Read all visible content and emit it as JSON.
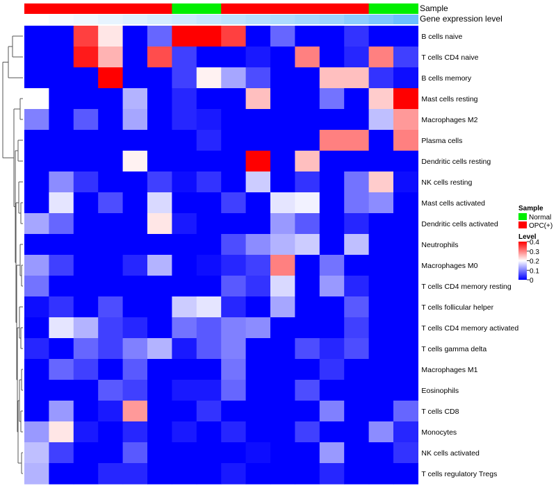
{
  "chart_data": {
    "type": "heatmap",
    "rows": [
      "B cells naive",
      "T cells CD4 naive",
      "B cells memory",
      "Mast cells resting",
      "Macrophages M2",
      "Plasma cells",
      "Dendritic cells resting",
      "NK cells resting",
      "Mast cells activated",
      "Dendritic cells activated",
      "Neutrophils",
      "Macrophages M0",
      "T cells CD4 memory resting",
      "T cells follicular helper",
      "T cells CD4 memory activated",
      "T cells gamma delta",
      "Macrophages M1",
      "Eosinophils",
      "T cells CD8",
      "Monocytes",
      "NK cells activated",
      "T cells regulatory  Tregs"
    ],
    "sample": [
      "OPC(+)",
      "OPC(+)",
      "OPC(+)",
      "OPC(+)",
      "OPC(+)",
      "OPC(+)",
      "Normal",
      "Normal",
      "OPC(+)",
      "OPC(+)",
      "OPC(+)",
      "OPC(+)",
      "OPC(+)",
      "OPC(+)",
      "Normal",
      "Normal"
    ],
    "gene_expression_level": [
      0.0,
      0.05,
      0.1,
      0.15,
      0.2,
      0.25,
      0.3,
      0.35,
      0.4,
      0.45,
      0.5,
      0.55,
      0.6,
      0.7,
      0.8,
      0.9
    ],
    "values": [
      [
        0.0,
        0.0,
        0.35,
        0.22,
        0.0,
        0.08,
        0.4,
        0.4,
        0.35,
        0.0,
        0.08,
        0.0,
        0.0,
        0.04,
        0.0,
        0.0
      ],
      [
        0.0,
        0.0,
        0.38,
        0.26,
        0.0,
        0.34,
        0.05,
        0.0,
        0.0,
        0.02,
        0.0,
        0.3,
        0.0,
        0.03,
        0.3,
        0.05
      ],
      [
        0.0,
        0.0,
        0.0,
        0.4,
        0.0,
        0.0,
        0.05,
        0.21,
        0.13,
        0.06,
        0.0,
        0.0,
        0.25,
        0.25,
        0.04,
        0.01
      ],
      [
        0.2,
        0.0,
        0.0,
        0.0,
        0.14,
        0.0,
        0.03,
        0.0,
        0.0,
        0.25,
        0.0,
        0.0,
        0.09,
        0.0,
        0.24,
        0.4
      ],
      [
        0.1,
        0.0,
        0.07,
        0.0,
        0.13,
        0.0,
        0.03,
        0.02,
        0.0,
        0.0,
        0.0,
        0.0,
        0.0,
        0.0,
        0.15,
        0.28
      ],
      [
        0.0,
        0.0,
        0.0,
        0.0,
        0.0,
        0.0,
        0.0,
        0.03,
        0.0,
        0.0,
        0.0,
        0.0,
        0.3,
        0.3,
        0.0,
        0.3
      ],
      [
        0.0,
        0.0,
        0.0,
        0.0,
        0.21,
        0.0,
        0.0,
        0.0,
        0.0,
        0.4,
        0.0,
        0.25,
        0.0,
        0.0,
        0.0,
        0.0
      ],
      [
        0.0,
        0.11,
        0.04,
        0.0,
        0.0,
        0.05,
        0.01,
        0.04,
        0.0,
        0.16,
        0.0,
        0.04,
        0.0,
        0.09,
        0.24,
        0.01
      ],
      [
        0.0,
        0.18,
        0.0,
        0.06,
        0.0,
        0.17,
        0.0,
        0.0,
        0.05,
        0.0,
        0.18,
        0.19,
        0.0,
        0.09,
        0.11,
        0.0
      ],
      [
        0.13,
        0.08,
        0.0,
        0.0,
        0.0,
        0.22,
        0.02,
        0.0,
        0.0,
        0.0,
        0.12,
        0.07,
        0.0,
        0.03,
        0.0,
        0.0
      ],
      [
        0.0,
        0.0,
        0.0,
        0.0,
        0.0,
        0.0,
        0.0,
        0.0,
        0.06,
        0.11,
        0.14,
        0.16,
        0.0,
        0.15,
        0.0,
        0.0
      ],
      [
        0.12,
        0.05,
        0.0,
        0.0,
        0.03,
        0.14,
        0.0,
        0.01,
        0.03,
        0.05,
        0.3,
        0.0,
        0.09,
        0.0,
        0.0,
        0.0
      ],
      [
        0.09,
        0.0,
        0.0,
        0.0,
        0.0,
        0.0,
        0.0,
        0.0,
        0.07,
        0.04,
        0.17,
        0.0,
        0.12,
        0.03,
        0.0,
        0.0
      ],
      [
        0.01,
        0.04,
        0.0,
        0.06,
        0.0,
        0.0,
        0.16,
        0.18,
        0.03,
        0.0,
        0.13,
        0.0,
        0.0,
        0.07,
        0.0,
        0.0
      ],
      [
        0.0,
        0.18,
        0.14,
        0.05,
        0.03,
        0.0,
        0.09,
        0.07,
        0.1,
        0.11,
        0.0,
        0.0,
        0.0,
        0.05,
        0.0,
        0.0
      ],
      [
        0.03,
        0.0,
        0.08,
        0.05,
        0.1,
        0.14,
        0.02,
        0.07,
        0.1,
        0.0,
        0.0,
        0.06,
        0.03,
        0.06,
        0.0,
        0.0
      ],
      [
        0.0,
        0.08,
        0.05,
        0.0,
        0.07,
        0.0,
        0.0,
        0.0,
        0.09,
        0.0,
        0.0,
        0.0,
        0.04,
        0.0,
        0.0,
        0.0
      ],
      [
        0.0,
        0.0,
        0.0,
        0.07,
        0.05,
        0.0,
        0.02,
        0.02,
        0.08,
        0.0,
        0.0,
        0.06,
        0.0,
        0.0,
        0.0,
        0.0
      ],
      [
        0.0,
        0.12,
        0.0,
        0.02,
        0.28,
        0.0,
        0.0,
        0.04,
        0.0,
        0.0,
        0.0,
        0.0,
        0.1,
        0.0,
        0.0,
        0.08
      ],
      [
        0.12,
        0.22,
        0.02,
        0.0,
        0.03,
        0.0,
        0.02,
        0.0,
        0.03,
        0.0,
        0.0,
        0.05,
        0.0,
        0.0,
        0.11,
        0.03
      ],
      [
        0.15,
        0.05,
        0.0,
        0.0,
        0.07,
        0.0,
        0.0,
        0.0,
        0.0,
        0.01,
        0.0,
        0.0,
        0.12,
        0.0,
        0.0,
        0.04
      ],
      [
        0.14,
        0.0,
        0.0,
        0.03,
        0.03,
        0.0,
        0.0,
        0.0,
        0.02,
        0.0,
        0.0,
        0.0,
        0.03,
        0.0,
        0.0,
        0.0
      ]
    ],
    "annotation_titles": {
      "sample": "Sample",
      "gene_expression_level": "Gene expression level"
    },
    "legend": {
      "sample_title": "Sample",
      "sample_entries": [
        {
          "label": "Normal",
          "color": "#00ee00"
        },
        {
          "label": "OPC(+)",
          "color": "#ff0000"
        }
      ],
      "level_title": "Level",
      "level_ticks": [
        "0.4",
        "0.3",
        "0.2",
        "0.1",
        "0"
      ],
      "level_tick_values": [
        0.4,
        0.3,
        0.2,
        0.1,
        0
      ],
      "placement": "right"
    },
    "color_scale": {
      "min": 0,
      "max": 0.4,
      "low": "#0000ff",
      "mid": "#ffffff",
      "high": "#ff0000"
    },
    "gene_expression_colors": {
      "low": "#ffffff",
      "high": "#5cb8ff"
    },
    "dendrogram": "rows"
  }
}
